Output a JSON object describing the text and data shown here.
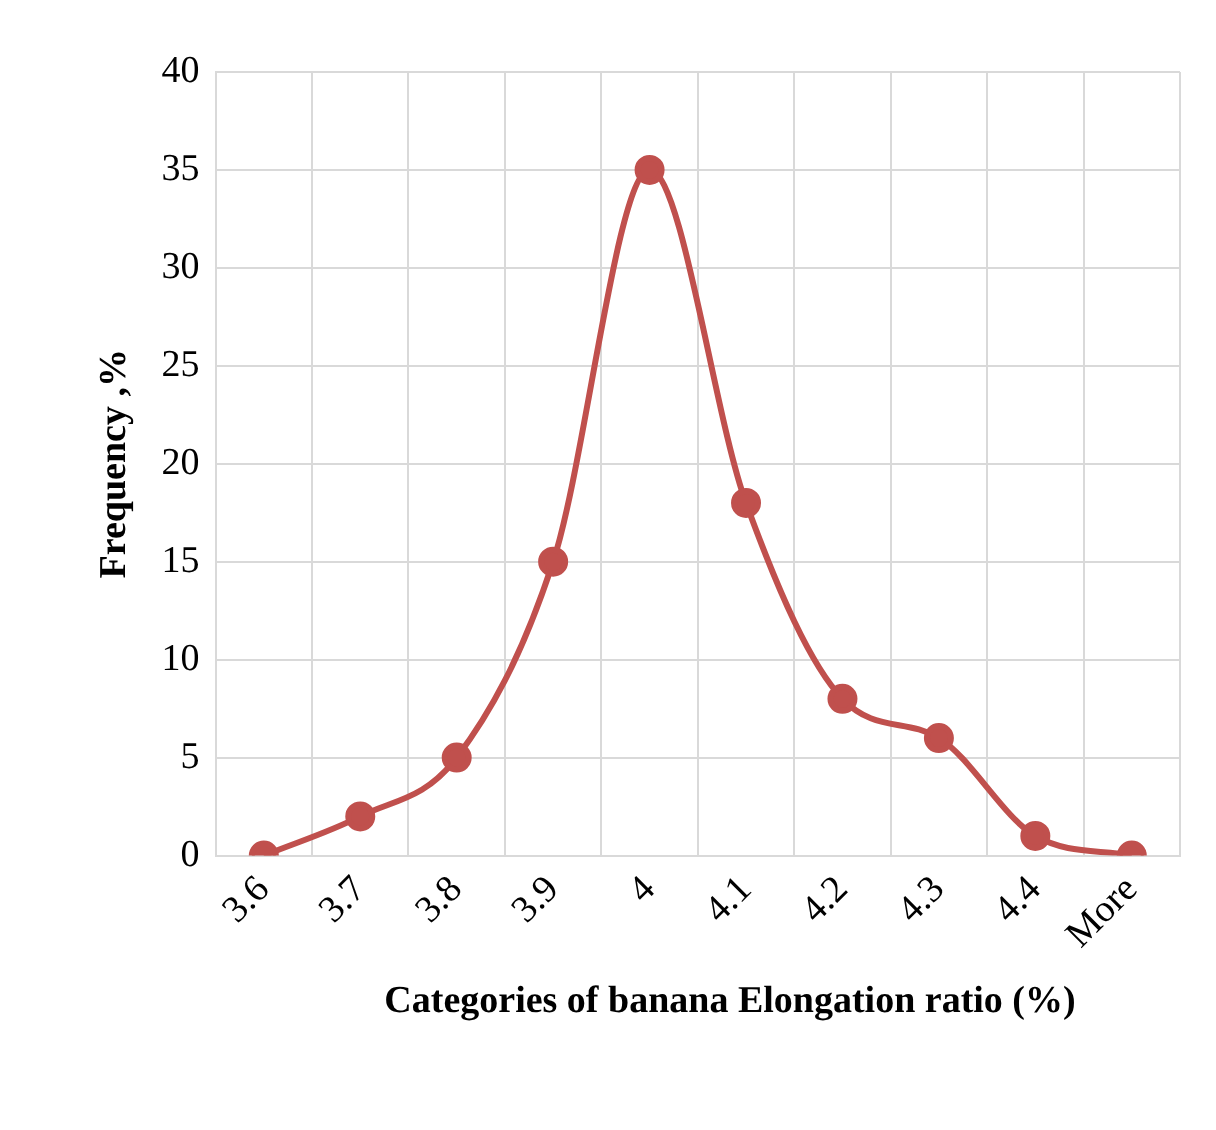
{
  "chart_data": {
    "type": "line",
    "xlabel": "Categories of banana Elongation ratio (%)",
    "ylabel": "Frequency ,%",
    "categories": [
      "3.6",
      "3.7",
      "3.8",
      "3.9",
      "4",
      "4.1",
      "4.2",
      "4.3",
      "4.4",
      "More"
    ],
    "series": [
      {
        "color": "#c0504d",
        "values": [
          0,
          2,
          5,
          15,
          35,
          18,
          8,
          6,
          1,
          0
        ]
      }
    ],
    "ylim": [
      0,
      40
    ],
    "yticks": [
      0,
      5,
      10,
      15,
      20,
      25,
      30,
      35,
      40
    ],
    "grid": true,
    "legend": false,
    "marker": "circle",
    "line_style": "solid"
  }
}
